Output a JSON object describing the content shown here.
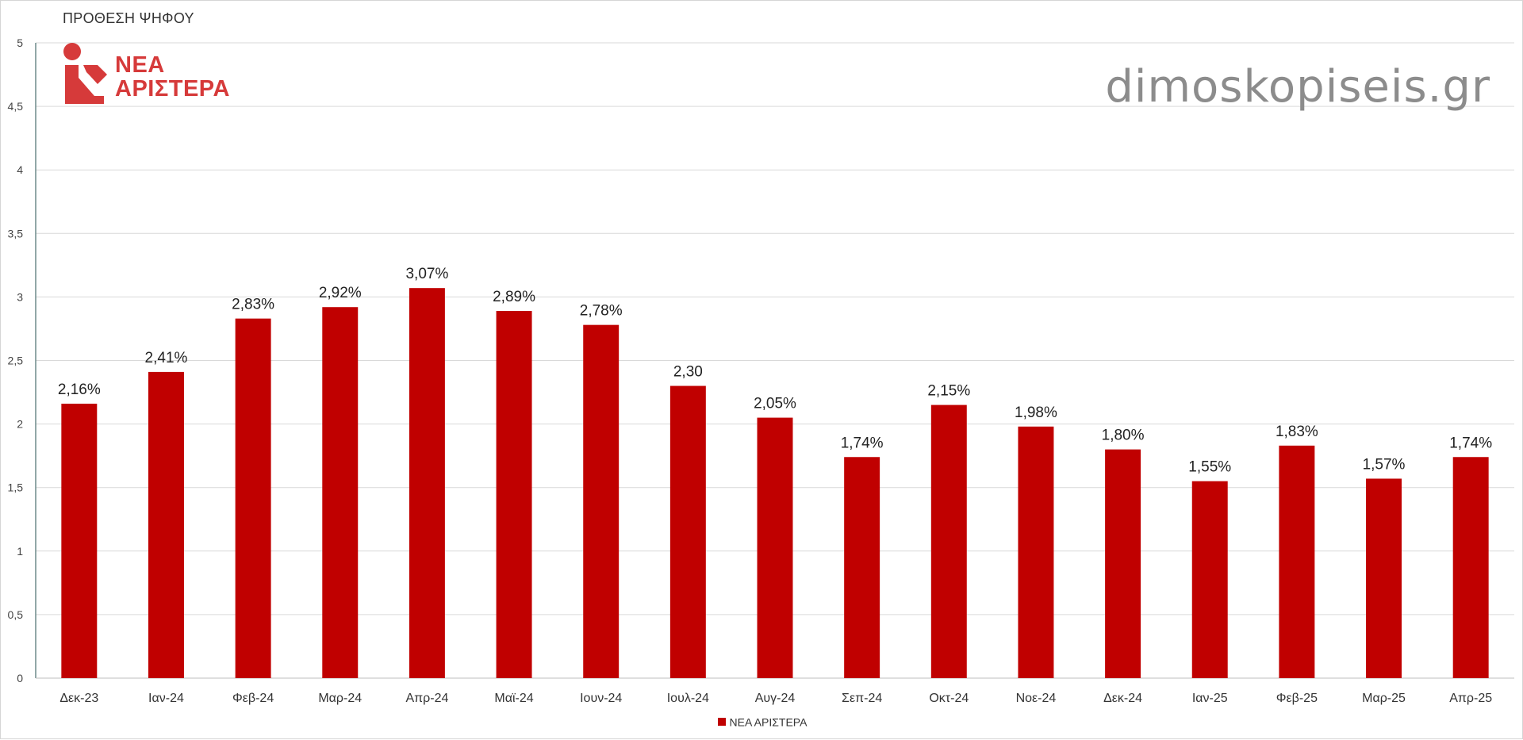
{
  "brand": {
    "logo_line1": "ΝΕΑ",
    "logo_line2": "ΑΡΙΣΤΕΡΑ",
    "logo_color": "#D63A3A",
    "watermark": "dimoskopiseis.gr"
  },
  "chart_data": {
    "type": "bar",
    "title": "ΠΡΟΘΕΣΗ ΨΗΦΟΥ",
    "xlabel": "",
    "ylabel": "",
    "ylim": [
      0,
      5
    ],
    "yticks": [
      "0",
      "0,5",
      "1",
      "1,5",
      "2",
      "2,5",
      "3",
      "3,5",
      "4",
      "4,5",
      "5"
    ],
    "grid": true,
    "legend_position": "bottom",
    "categories": [
      "Δεκ-23",
      "Ιαν-24",
      "Φεβ-24",
      "Μαρ-24",
      "Απρ-24",
      "Μαϊ-24",
      "Ιουν-24",
      "Ιουλ-24",
      "Αυγ-24",
      "Σεπ-24",
      "Οκτ-24",
      "Νοε-24",
      "Δεκ-24",
      "Ιαν-25",
      "Φεβ-25",
      "Μαρ-25",
      "Απρ-25"
    ],
    "series": [
      {
        "name": "ΝΕΑ ΑΡΙΣΤΕΡΑ",
        "color": "#C00000",
        "values": [
          2.16,
          2.41,
          2.83,
          2.92,
          3.07,
          2.89,
          2.78,
          2.3,
          2.05,
          1.74,
          2.15,
          1.98,
          1.8,
          1.55,
          1.83,
          1.57,
          1.74
        ],
        "labels": [
          "2,16%",
          "2,41%",
          "2,83%",
          "2,92%",
          "3,07%",
          "2,89%",
          "2,78%",
          "2,30",
          "2,05%",
          "1,74%",
          "2,15%",
          "1,98%",
          "1,80%",
          "1,55%",
          "1,83%",
          "1,57%",
          "1,74%"
        ]
      }
    ]
  }
}
